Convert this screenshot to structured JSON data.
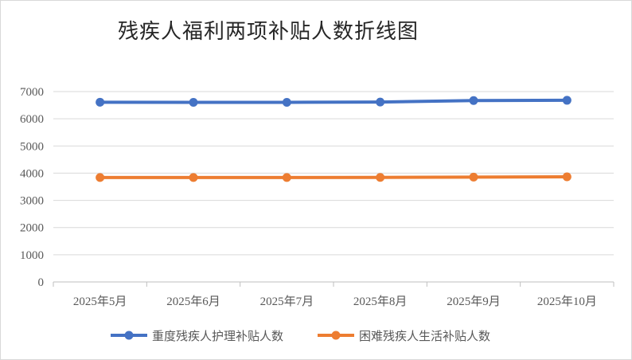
{
  "chart_data": {
    "type": "line",
    "title": "残疾人福利两项补贴人数折线图",
    "categories": [
      "2025年5月",
      "2025年6月",
      "2025年7月",
      "2025年8月",
      "2025年9月",
      "2025年10月"
    ],
    "series": [
      {
        "name": "重度残疾人护理补贴人数",
        "color": "#4472C4",
        "values": [
          6610,
          6605,
          6605,
          6615,
          6670,
          6680
        ]
      },
      {
        "name": "困难残疾人生活补贴人数",
        "color": "#ED7D31",
        "values": [
          3840,
          3840,
          3840,
          3845,
          3855,
          3865
        ]
      }
    ],
    "ylim": [
      0,
      7000
    ],
    "yticks": [
      "0",
      "1000",
      "2000",
      "3000",
      "4000",
      "5000",
      "6000",
      "7000"
    ],
    "grid": true,
    "legend": "bottom"
  }
}
